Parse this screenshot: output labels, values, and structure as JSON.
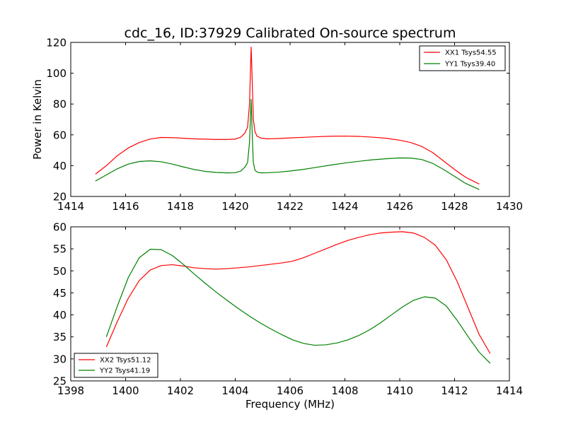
{
  "figure": {
    "title": "cdc_16, ID:37929 Calibrated On-source spectrum",
    "xlabel": "Frequency (MHz)",
    "ylabel": "Power in Kelvin"
  },
  "colors": {
    "red": "#ff0000",
    "green": "#008000"
  },
  "chart_data": [
    {
      "type": "line",
      "xlim": [
        1414,
        1430
      ],
      "ylim": [
        20,
        120
      ],
      "xticks": [
        1414,
        1416,
        1418,
        1420,
        1422,
        1424,
        1426,
        1428,
        1430
      ],
      "yticks": [
        20,
        40,
        60,
        80,
        100,
        120
      ],
      "ylabel": "Power in Kelvin",
      "legend_position": "top-right",
      "grid": false,
      "series": [
        {
          "name": "XX1 Tsys54.55",
          "color": "#ff0000",
          "x": [
            1414.9,
            1415.3,
            1415.7,
            1416.1,
            1416.5,
            1416.9,
            1417.3,
            1417.7,
            1418.1,
            1418.5,
            1418.9,
            1419.3,
            1419.7,
            1420.0,
            1420.2,
            1420.35,
            1420.45,
            1420.52,
            1420.58,
            1420.62,
            1420.66,
            1420.72,
            1420.8,
            1420.95,
            1421.2,
            1421.6,
            1422.0,
            1422.5,
            1423.0,
            1423.5,
            1424.0,
            1424.5,
            1425.0,
            1425.5,
            1426.0,
            1426.4,
            1426.8,
            1427.2,
            1427.6,
            1428.0,
            1428.4,
            1428.9
          ],
          "y": [
            34.5,
            40.0,
            46.5,
            51.5,
            55.0,
            57.3,
            58.3,
            58.2,
            57.8,
            57.4,
            57.2,
            57.0,
            57.0,
            57.2,
            58.5,
            61.0,
            65.0,
            80.0,
            117.0,
            95.0,
            70.0,
            62.0,
            59.0,
            57.8,
            57.4,
            57.6,
            58.0,
            58.4,
            58.8,
            59.1,
            59.2,
            59.0,
            58.5,
            57.8,
            56.5,
            55.0,
            52.5,
            48.5,
            43.0,
            37.5,
            32.5,
            28.0
          ]
        },
        {
          "name": "YY1 Tsys39.40",
          "color": "#008000",
          "x": [
            1414.9,
            1415.3,
            1415.7,
            1416.1,
            1416.5,
            1416.9,
            1417.3,
            1417.7,
            1418.1,
            1418.5,
            1418.9,
            1419.3,
            1419.7,
            1420.0,
            1420.2,
            1420.35,
            1420.45,
            1420.52,
            1420.58,
            1420.62,
            1420.66,
            1420.72,
            1420.8,
            1420.95,
            1421.2,
            1421.6,
            1422.0,
            1422.5,
            1423.0,
            1423.5,
            1424.0,
            1424.5,
            1425.0,
            1425.5,
            1426.0,
            1426.4,
            1426.8,
            1427.2,
            1427.6,
            1428.0,
            1428.4,
            1428.9
          ],
          "y": [
            30.0,
            34.0,
            38.0,
            41.0,
            42.7,
            43.1,
            42.5,
            41.0,
            39.2,
            37.5,
            36.3,
            35.6,
            35.3,
            35.4,
            36.5,
            39.0,
            42.0,
            55.0,
            83.0,
            60.0,
            42.0,
            37.0,
            35.8,
            35.3,
            35.4,
            35.8,
            36.5,
            37.6,
            39.0,
            40.4,
            41.7,
            42.8,
            43.8,
            44.5,
            45.0,
            44.9,
            44.0,
            41.5,
            37.5,
            33.0,
            28.5,
            24.5
          ]
        }
      ]
    },
    {
      "type": "line",
      "xlim": [
        1398,
        1414
      ],
      "ylim": [
        25,
        60
      ],
      "xticks": [
        1398,
        1400,
        1402,
        1404,
        1406,
        1408,
        1410,
        1412,
        1414
      ],
      "yticks": [
        25,
        30,
        35,
        40,
        45,
        50,
        55,
        60
      ],
      "xlabel": "Frequency (MHz)",
      "legend_position": "bottom-left",
      "grid": false,
      "series": [
        {
          "name": "XX2 Tsys51.12",
          "color": "#ff0000",
          "x": [
            1399.3,
            1399.7,
            1400.1,
            1400.5,
            1400.9,
            1401.3,
            1401.7,
            1402.1,
            1402.5,
            1402.9,
            1403.3,
            1403.7,
            1404.1,
            1404.5,
            1404.9,
            1405.3,
            1405.7,
            1406.1,
            1406.5,
            1406.9,
            1407.3,
            1407.7,
            1408.1,
            1408.5,
            1408.9,
            1409.3,
            1409.7,
            1410.1,
            1410.5,
            1410.9,
            1411.3,
            1411.7,
            1412.1,
            1412.5,
            1412.9,
            1413.3
          ],
          "y": [
            32.7,
            38.5,
            43.8,
            47.8,
            50.2,
            51.2,
            51.4,
            51.1,
            50.7,
            50.5,
            50.4,
            50.5,
            50.7,
            50.9,
            51.2,
            51.5,
            51.8,
            52.2,
            53.0,
            54.0,
            55.0,
            56.0,
            56.9,
            57.6,
            58.2,
            58.6,
            58.8,
            58.9,
            58.6,
            57.6,
            55.8,
            52.5,
            47.5,
            41.5,
            35.5,
            31.2
          ]
        },
        {
          "name": "YY2 Tsys41.19",
          "color": "#008000",
          "x": [
            1399.3,
            1399.7,
            1400.1,
            1400.5,
            1400.9,
            1401.3,
            1401.7,
            1402.1,
            1402.5,
            1402.9,
            1403.3,
            1403.7,
            1404.1,
            1404.5,
            1404.9,
            1405.3,
            1405.7,
            1406.1,
            1406.5,
            1406.9,
            1407.3,
            1407.7,
            1408.1,
            1408.5,
            1408.9,
            1409.3,
            1409.7,
            1410.1,
            1410.5,
            1410.9,
            1411.3,
            1411.7,
            1412.1,
            1412.5,
            1412.9,
            1413.3
          ],
          "y": [
            35.0,
            42.0,
            48.5,
            53.0,
            54.9,
            54.8,
            53.5,
            51.5,
            49.3,
            47.2,
            45.2,
            43.3,
            41.5,
            39.8,
            38.2,
            36.8,
            35.5,
            34.3,
            33.5,
            33.1,
            33.2,
            33.6,
            34.3,
            35.3,
            36.6,
            38.2,
            40.0,
            41.8,
            43.3,
            44.1,
            43.8,
            42.0,
            38.7,
            35.0,
            31.5,
            29.0
          ]
        }
      ]
    }
  ]
}
